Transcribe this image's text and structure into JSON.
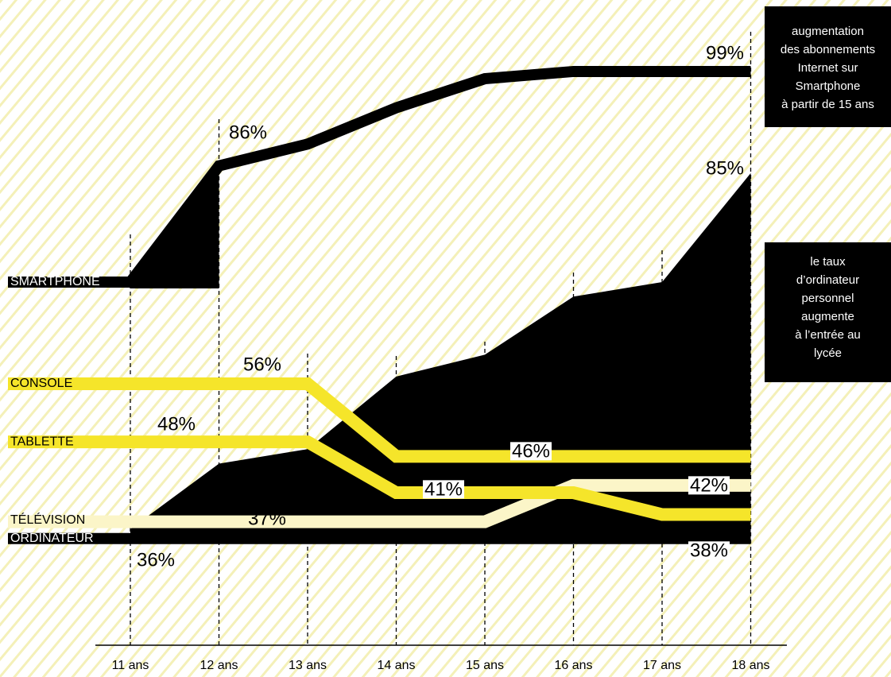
{
  "chart_data": {
    "type": "line",
    "categories": [
      "11 ans",
      "12 ans",
      "13 ans",
      "14 ans",
      "15 ans",
      "16 ans",
      "17 ans",
      "18 ans"
    ],
    "series": [
      {
        "name": "ORDINATEUR",
        "color": "#000000",
        "values": [
          36,
          45,
          47,
          57,
          60,
          68,
          70,
          85
        ],
        "value_labels": [
          "36%",
          null,
          null,
          null,
          "60%",
          null,
          "70%",
          "85%"
        ]
      },
      {
        "name": "TÉLÉVISION",
        "color": "#fbf5c8",
        "values": [
          37,
          37,
          37,
          37,
          37,
          42,
          42,
          42
        ],
        "value_labels": [
          null,
          null,
          "37%",
          null,
          null,
          null,
          null,
          "42%"
        ]
      },
      {
        "name": "TABLETTE",
        "color": "#f5e52a",
        "values": [
          48,
          48,
          48,
          41,
          41,
          41,
          38,
          38
        ],
        "value_labels": [
          null,
          "48%",
          null,
          null,
          "41%",
          null,
          null,
          "38%"
        ]
      },
      {
        "name": "CONSOLE",
        "color": "#f5e52a",
        "values": [
          56,
          56,
          56,
          46,
          46,
          46,
          46,
          46
        ],
        "value_labels": [
          null,
          null,
          "56%",
          null,
          null,
          "46%",
          null,
          null
        ]
      },
      {
        "name": "SMARTPHONE",
        "color": "#000000",
        "values": [
          70,
          86,
          89,
          94,
          98,
          99,
          99,
          99
        ],
        "value_labels": [
          "70%",
          "86%",
          null,
          null,
          null,
          null,
          null,
          "99%"
        ]
      }
    ],
    "annotations": [
      [
        "augmentation",
        "des abonnements",
        "Internet sur",
        "Smartphone",
        "à partir de 15 ans"
      ],
      [
        "le taux",
        "d’ordinateur",
        "personnel",
        "augmente",
        "à l’entrée au",
        "lycée"
      ]
    ]
  }
}
